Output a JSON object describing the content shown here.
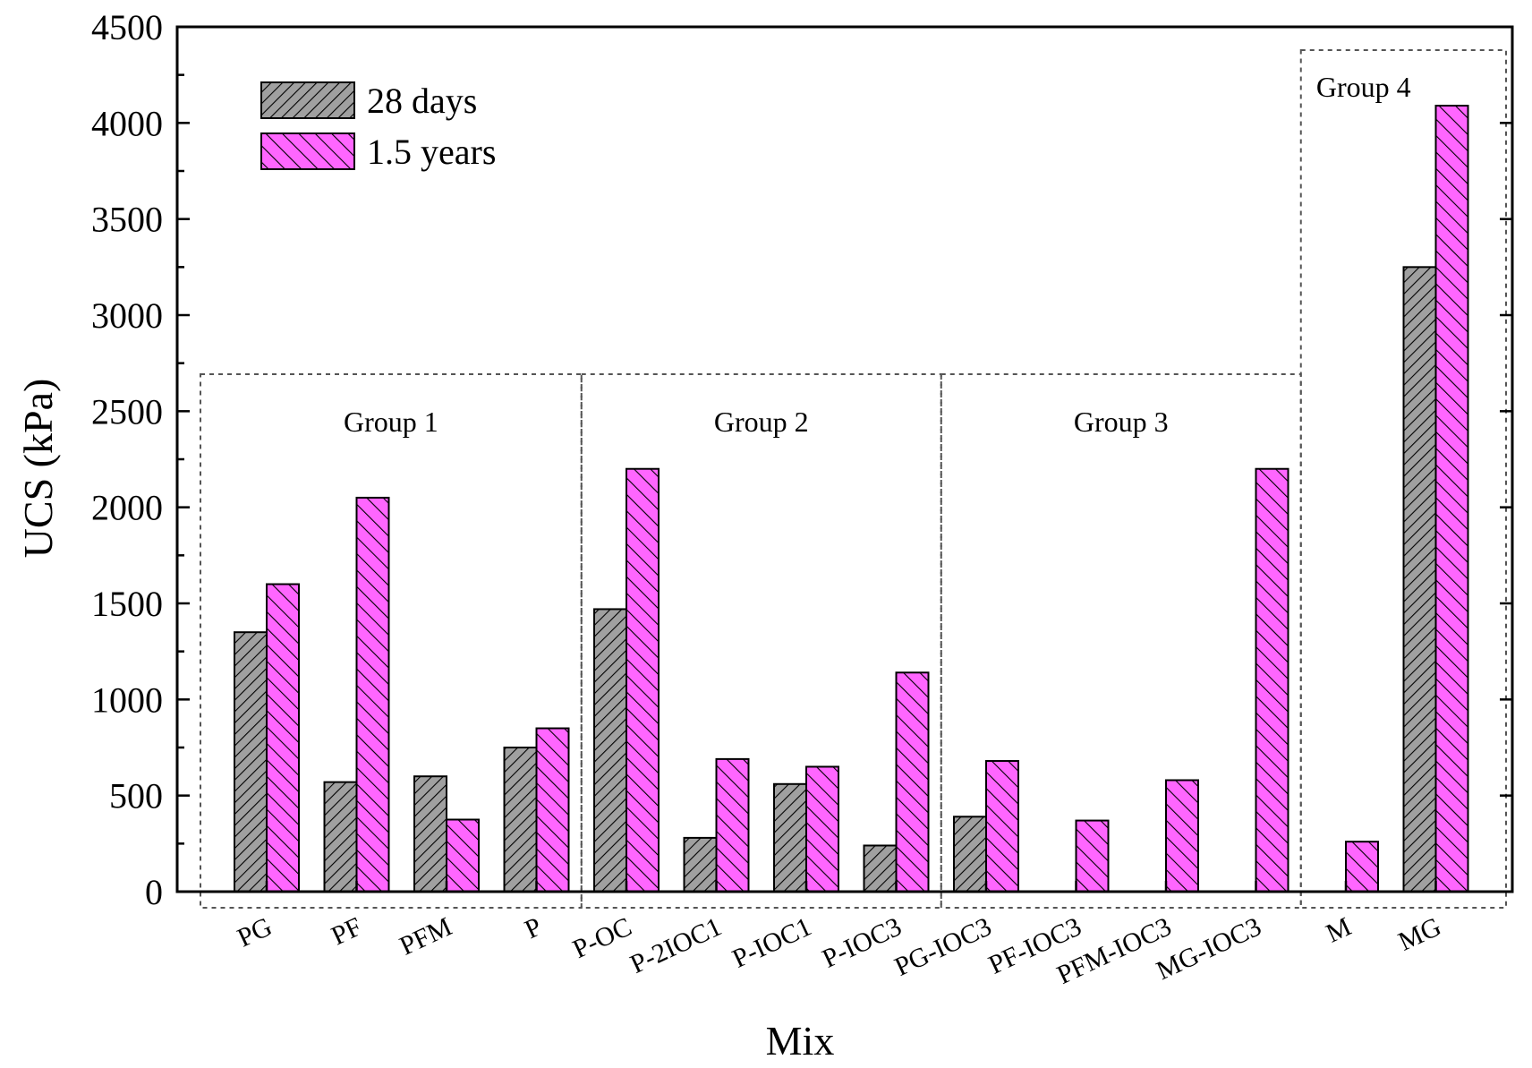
{
  "chart_data": {
    "type": "bar",
    "title": "",
    "xlabel": "Mix",
    "ylabel": "UCS (kPa)",
    "ylim": [
      0,
      4500
    ],
    "yticks": [
      0,
      500,
      1000,
      1500,
      2000,
      2500,
      3000,
      3500,
      4000,
      4500
    ],
    "categories": [
      "PG",
      "PF",
      "PFM",
      "P",
      "P-OC",
      "P-2IOC1",
      "P-IOC1",
      "P-IOC3",
      "PG-IOC3",
      "PF-IOC3",
      "PFM-IOC3",
      "MG-IOC3",
      "M",
      "MG"
    ],
    "series": [
      {
        "name": "28 days",
        "color": "#a0a0a0",
        "pattern": "diagonal-up",
        "values": [
          1350,
          570,
          600,
          750,
          1470,
          280,
          560,
          240,
          390,
          null,
          null,
          null,
          null,
          3250
        ]
      },
      {
        "name": "1.5 years",
        "color": "#ff66ff",
        "pattern": "diagonal-down",
        "values": [
          1600,
          2050,
          375,
          850,
          2200,
          690,
          650,
          1140,
          680,
          370,
          580,
          2200,
          260,
          4090
        ]
      }
    ],
    "groups": [
      {
        "label": "Group 1",
        "categories": [
          "PG",
          "PF",
          "PFM",
          "P"
        ]
      },
      {
        "label": "Group 2",
        "categories": [
          "P-OC",
          "P-2IOC1",
          "P-IOC1",
          "P-IOC3"
        ]
      },
      {
        "label": "Group 3",
        "categories": [
          "PG-IOC3",
          "PF-IOC3",
          "PFM-IOC3",
          "MG-IOC3"
        ]
      },
      {
        "label": "Group 4",
        "categories": [
          "M",
          "MG"
        ]
      }
    ],
    "legend": {
      "position": "top-left"
    },
    "grid": false
  }
}
